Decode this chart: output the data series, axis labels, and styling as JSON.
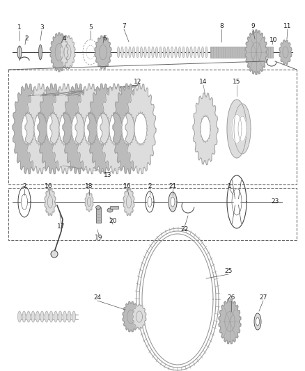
{
  "bg_color": "#ffffff",
  "line_color": "#444444",
  "gear_dark": "#999999",
  "gear_light": "#dddddd",
  "gear_mid": "#bbbbbb",
  "label_fontsize": 6.5,
  "fig_width": 4.38,
  "fig_height": 5.33,
  "dpi": 100
}
